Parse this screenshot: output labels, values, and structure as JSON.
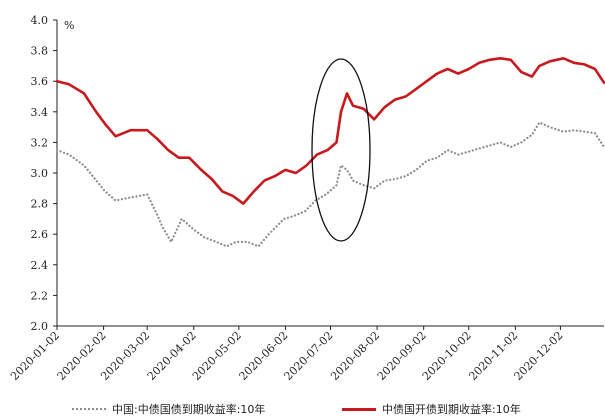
{
  "chart_data": {
    "type": "line",
    "ylabel": "%",
    "ylim": [
      2.0,
      4.0
    ],
    "yticks": [
      "2.0",
      "2.2",
      "2.4",
      "2.6",
      "2.8",
      "3.0",
      "3.2",
      "3.4",
      "3.6",
      "3.8",
      "4.0"
    ],
    "x_tick_labels": [
      "2020-01-02",
      "2020-02-02",
      "2020-03-02",
      "2020-04-02",
      "2020-05-02",
      "2020-06-02",
      "2020-07-02",
      "2020-08-02",
      "2020-09-02",
      "2020-10-02",
      "2020-11-02",
      "2020-12-02"
    ],
    "xlim": [
      "2020-01-02",
      "2020-12-31"
    ],
    "grid": false,
    "legend_position": "bottom",
    "annotation": "ellipse highlighting July 2020",
    "series": [
      {
        "name": "中国:中债国债到期收益率:10年",
        "color": "#8c8c8c",
        "style": "dotted",
        "points": [
          [
            "2020-01-02",
            3.15
          ],
          [
            "2020-01-10",
            3.12
          ],
          [
            "2020-01-20",
            3.05
          ],
          [
            "2020-02-03",
            2.88
          ],
          [
            "2020-02-10",
            2.82
          ],
          [
            "2020-02-20",
            2.84
          ],
          [
            "2020-03-02",
            2.86
          ],
          [
            "2020-03-09",
            2.72
          ],
          [
            "2020-03-12",
            2.65
          ],
          [
            "2020-03-18",
            2.55
          ],
          [
            "2020-03-25",
            2.7
          ],
          [
            "2020-04-02",
            2.63
          ],
          [
            "2020-04-09",
            2.58
          ],
          [
            "2020-04-17",
            2.55
          ],
          [
            "2020-04-24",
            2.52
          ],
          [
            "2020-04-30",
            2.55
          ],
          [
            "2020-05-08",
            2.55
          ],
          [
            "2020-05-15",
            2.52
          ],
          [
            "2020-05-22",
            2.6
          ],
          [
            "2020-06-01",
            2.7
          ],
          [
            "2020-06-08",
            2.72
          ],
          [
            "2020-06-15",
            2.75
          ],
          [
            "2020-06-22",
            2.82
          ],
          [
            "2020-06-29",
            2.86
          ],
          [
            "2020-07-06",
            2.92
          ],
          [
            "2020-07-09",
            3.05
          ],
          [
            "2020-07-13",
            3.02
          ],
          [
            "2020-07-17",
            2.95
          ],
          [
            "2020-07-24",
            2.92
          ],
          [
            "2020-07-31",
            2.9
          ],
          [
            "2020-08-07",
            2.95
          ],
          [
            "2020-08-14",
            2.96
          ],
          [
            "2020-08-21",
            2.98
          ],
          [
            "2020-08-28",
            3.02
          ],
          [
            "2020-09-04",
            3.08
          ],
          [
            "2020-09-11",
            3.1
          ],
          [
            "2020-09-18",
            3.15
          ],
          [
            "2020-09-25",
            3.12
          ],
          [
            "2020-10-02",
            3.14
          ],
          [
            "2020-10-09",
            3.16
          ],
          [
            "2020-10-16",
            3.18
          ],
          [
            "2020-10-23",
            3.2
          ],
          [
            "2020-10-30",
            3.17
          ],
          [
            "2020-11-06",
            3.2
          ],
          [
            "2020-11-13",
            3.25
          ],
          [
            "2020-11-18",
            3.33
          ],
          [
            "2020-11-25",
            3.3
          ],
          [
            "2020-12-04",
            3.27
          ],
          [
            "2020-12-11",
            3.28
          ],
          [
            "2020-12-18",
            3.27
          ],
          [
            "2020-12-25",
            3.26
          ],
          [
            "2020-12-31",
            3.17
          ]
        ]
      },
      {
        "name": "中债国开债到期收益率:10年",
        "color": "#c8191d",
        "style": "solid",
        "points": [
          [
            "2020-01-02",
            3.6
          ],
          [
            "2020-01-10",
            3.58
          ],
          [
            "2020-01-20",
            3.52
          ],
          [
            "2020-01-28",
            3.4
          ],
          [
            "2020-02-03",
            3.32
          ],
          [
            "2020-02-10",
            3.24
          ],
          [
            "2020-02-20",
            3.28
          ],
          [
            "2020-03-02",
            3.28
          ],
          [
            "2020-03-09",
            3.22
          ],
          [
            "2020-03-16",
            3.15
          ],
          [
            "2020-03-23",
            3.1
          ],
          [
            "2020-03-30",
            3.1
          ],
          [
            "2020-04-07",
            3.02
          ],
          [
            "2020-04-14",
            2.96
          ],
          [
            "2020-04-21",
            2.88
          ],
          [
            "2020-04-28",
            2.85
          ],
          [
            "2020-05-05",
            2.8
          ],
          [
            "2020-05-12",
            2.88
          ],
          [
            "2020-05-19",
            2.95
          ],
          [
            "2020-05-26",
            2.98
          ],
          [
            "2020-06-02",
            3.02
          ],
          [
            "2020-06-09",
            3.0
          ],
          [
            "2020-06-16",
            3.05
          ],
          [
            "2020-06-23",
            3.12
          ],
          [
            "2020-06-30",
            3.15
          ],
          [
            "2020-07-06",
            3.2
          ],
          [
            "2020-07-09",
            3.4
          ],
          [
            "2020-07-13",
            3.52
          ],
          [
            "2020-07-17",
            3.44
          ],
          [
            "2020-07-24",
            3.42
          ],
          [
            "2020-07-31",
            3.35
          ],
          [
            "2020-08-07",
            3.43
          ],
          [
            "2020-08-14",
            3.48
          ],
          [
            "2020-08-21",
            3.5
          ],
          [
            "2020-08-28",
            3.55
          ],
          [
            "2020-09-04",
            3.6
          ],
          [
            "2020-09-11",
            3.65
          ],
          [
            "2020-09-18",
            3.68
          ],
          [
            "2020-09-25",
            3.65
          ],
          [
            "2020-10-02",
            3.68
          ],
          [
            "2020-10-09",
            3.72
          ],
          [
            "2020-10-16",
            3.74
          ],
          [
            "2020-10-23",
            3.75
          ],
          [
            "2020-10-30",
            3.74
          ],
          [
            "2020-11-06",
            3.66
          ],
          [
            "2020-11-13",
            3.63
          ],
          [
            "2020-11-18",
            3.7
          ],
          [
            "2020-11-25",
            3.73
          ],
          [
            "2020-12-04",
            3.75
          ],
          [
            "2020-12-11",
            3.72
          ],
          [
            "2020-12-18",
            3.71
          ],
          [
            "2020-12-25",
            3.68
          ],
          [
            "2020-12-31",
            3.59
          ]
        ]
      }
    ]
  }
}
